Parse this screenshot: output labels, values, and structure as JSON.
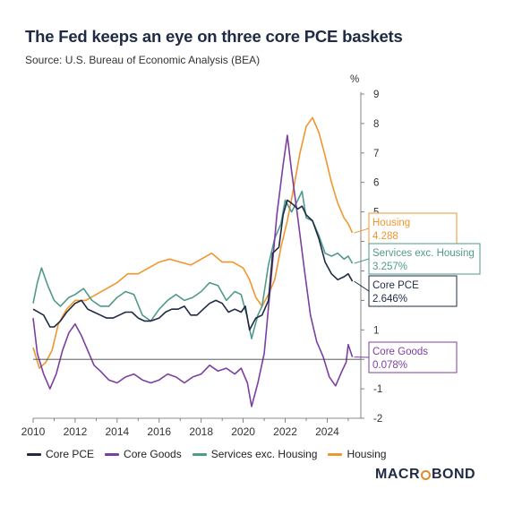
{
  "header": {
    "title": "The Fed keeps an eye on three core PCE baskets",
    "source": "Source: U.S. Bureau of Economic Analysis (BEA)"
  },
  "brand": {
    "name_left": "MACR",
    "name_right": "BOND",
    "accent": "#e28a2b"
  },
  "chart_data": {
    "type": "line",
    "ylabel": "%",
    "ylim": [
      -2,
      9
    ],
    "y_ticks": [
      -2,
      -1,
      0,
      1,
      2,
      3,
      4,
      5,
      6,
      7,
      8,
      9
    ],
    "xlim": [
      2010,
      2025.6
    ],
    "x_ticks": [
      2010,
      2012,
      2014,
      2016,
      2018,
      2020,
      2022,
      2024
    ],
    "grid": false,
    "zero_line": true,
    "legend_position": "bottom",
    "series": [
      {
        "name": "Core PCE",
        "color": "#1f2a44",
        "last_label": "Core PCE",
        "last_value": "2.646%",
        "points": [
          [
            2010.0,
            1.7
          ],
          [
            2010.5,
            1.5
          ],
          [
            2010.8,
            1.1
          ],
          [
            2011.0,
            1.1
          ],
          [
            2011.3,
            1.3
          ],
          [
            2011.6,
            1.6
          ],
          [
            2012.0,
            1.9
          ],
          [
            2012.3,
            2.0
          ],
          [
            2012.6,
            1.7
          ],
          [
            2012.9,
            1.6
          ],
          [
            2013.2,
            1.5
          ],
          [
            2013.5,
            1.4
          ],
          [
            2013.8,
            1.4
          ],
          [
            2014.1,
            1.5
          ],
          [
            2014.4,
            1.6
          ],
          [
            2014.7,
            1.6
          ],
          [
            2015.0,
            1.4
          ],
          [
            2015.3,
            1.3
          ],
          [
            2015.6,
            1.3
          ],
          [
            2016.0,
            1.4
          ],
          [
            2016.3,
            1.6
          ],
          [
            2016.6,
            1.7
          ],
          [
            2016.9,
            1.7
          ],
          [
            2017.2,
            1.8
          ],
          [
            2017.5,
            1.5
          ],
          [
            2017.8,
            1.5
          ],
          [
            2018.1,
            1.7
          ],
          [
            2018.4,
            1.9
          ],
          [
            2018.7,
            2.0
          ],
          [
            2019.0,
            1.9
          ],
          [
            2019.3,
            1.6
          ],
          [
            2019.6,
            1.7
          ],
          [
            2019.9,
            1.6
          ],
          [
            2020.1,
            1.8
          ],
          [
            2020.3,
            1.0
          ],
          [
            2020.6,
            1.4
          ],
          [
            2020.9,
            1.5
          ],
          [
            2021.2,
            2.0
          ],
          [
            2021.4,
            3.6
          ],
          [
            2021.7,
            3.8
          ],
          [
            2021.9,
            4.9
          ],
          [
            2022.1,
            5.4
          ],
          [
            2022.3,
            5.3
          ],
          [
            2022.6,
            5.1
          ],
          [
            2022.8,
            5.2
          ],
          [
            2023.0,
            4.9
          ],
          [
            2023.3,
            4.7
          ],
          [
            2023.6,
            4.1
          ],
          [
            2023.9,
            3.3
          ],
          [
            2024.2,
            2.9
          ],
          [
            2024.5,
            2.7
          ],
          [
            2024.8,
            2.8
          ],
          [
            2025.0,
            2.9
          ],
          [
            2025.2,
            2.646
          ]
        ]
      },
      {
        "name": "Core Goods",
        "color": "#7b3fa0",
        "last_label": "Core Goods",
        "last_value": "0.078%",
        "points": [
          [
            2010.0,
            1.4
          ],
          [
            2010.2,
            0.2
          ],
          [
            2010.5,
            -0.5
          ],
          [
            2010.8,
            -1.0
          ],
          [
            2011.1,
            -0.5
          ],
          [
            2011.4,
            0.3
          ],
          [
            2011.7,
            0.9
          ],
          [
            2012.0,
            1.2
          ],
          [
            2012.3,
            0.8
          ],
          [
            2012.6,
            0.3
          ],
          [
            2012.9,
            -0.2
          ],
          [
            2013.2,
            -0.4
          ],
          [
            2013.6,
            -0.7
          ],
          [
            2014.0,
            -0.8
          ],
          [
            2014.4,
            -0.6
          ],
          [
            2014.8,
            -0.5
          ],
          [
            2015.2,
            -0.7
          ],
          [
            2015.6,
            -0.8
          ],
          [
            2016.0,
            -0.7
          ],
          [
            2016.4,
            -0.5
          ],
          [
            2016.8,
            -0.6
          ],
          [
            2017.2,
            -0.8
          ],
          [
            2017.6,
            -0.6
          ],
          [
            2018.0,
            -0.5
          ],
          [
            2018.4,
            -0.2
          ],
          [
            2018.8,
            -0.4
          ],
          [
            2019.2,
            -0.3
          ],
          [
            2019.6,
            -0.5
          ],
          [
            2019.9,
            -0.3
          ],
          [
            2020.2,
            -0.8
          ],
          [
            2020.4,
            -1.6
          ],
          [
            2020.7,
            -0.8
          ],
          [
            2021.0,
            0.2
          ],
          [
            2021.3,
            2.5
          ],
          [
            2021.6,
            4.9
          ],
          [
            2021.9,
            6.6
          ],
          [
            2022.1,
            7.6
          ],
          [
            2022.3,
            6.4
          ],
          [
            2022.6,
            4.8
          ],
          [
            2022.9,
            3.1
          ],
          [
            2023.2,
            1.5
          ],
          [
            2023.5,
            0.6
          ],
          [
            2023.8,
            0.1
          ],
          [
            2024.1,
            -0.6
          ],
          [
            2024.4,
            -0.9
          ],
          [
            2024.7,
            -0.4
          ],
          [
            2024.9,
            -0.1
          ],
          [
            2025.0,
            0.5
          ],
          [
            2025.2,
            0.078
          ]
        ]
      },
      {
        "name": "Services exc. Housing",
        "color": "#4f9a8b",
        "last_label": "Services exc. Housing",
        "last_value": "3.257%",
        "points": [
          [
            2010.0,
            1.9
          ],
          [
            2010.2,
            2.6
          ],
          [
            2010.4,
            3.1
          ],
          [
            2010.7,
            2.5
          ],
          [
            2011.0,
            2.0
          ],
          [
            2011.3,
            1.8
          ],
          [
            2011.7,
            2.1
          ],
          [
            2012.0,
            2.2
          ],
          [
            2012.4,
            2.4
          ],
          [
            2012.8,
            2.0
          ],
          [
            2013.2,
            1.8
          ],
          [
            2013.6,
            1.8
          ],
          [
            2014.0,
            2.1
          ],
          [
            2014.4,
            2.3
          ],
          [
            2014.8,
            2.2
          ],
          [
            2015.2,
            1.5
          ],
          [
            2015.6,
            1.3
          ],
          [
            2016.0,
            1.7
          ],
          [
            2016.4,
            2.0
          ],
          [
            2016.8,
            2.2
          ],
          [
            2017.2,
            2.0
          ],
          [
            2017.6,
            2.1
          ],
          [
            2018.0,
            2.3
          ],
          [
            2018.4,
            2.6
          ],
          [
            2018.8,
            2.5
          ],
          [
            2019.2,
            2.0
          ],
          [
            2019.6,
            2.3
          ],
          [
            2019.9,
            2.2
          ],
          [
            2020.2,
            1.4
          ],
          [
            2020.4,
            0.7
          ],
          [
            2020.7,
            1.5
          ],
          [
            2020.9,
            1.8
          ],
          [
            2021.2,
            3.2
          ],
          [
            2021.5,
            4.1
          ],
          [
            2021.8,
            4.6
          ],
          [
            2022.0,
            5.4
          ],
          [
            2022.3,
            5.0
          ],
          [
            2022.6,
            5.4
          ],
          [
            2022.8,
            5.7
          ],
          [
            2023.0,
            4.8
          ],
          [
            2023.3,
            4.7
          ],
          [
            2023.6,
            4.2
          ],
          [
            2023.9,
            3.6
          ],
          [
            2024.2,
            3.5
          ],
          [
            2024.5,
            3.6
          ],
          [
            2024.8,
            3.4
          ],
          [
            2025.0,
            3.5
          ],
          [
            2025.2,
            3.257
          ]
        ]
      },
      {
        "name": "Housing",
        "color": "#f0962f",
        "last_label": "Housing",
        "last_value": "4.288",
        "points": [
          [
            2010.0,
            0.4
          ],
          [
            2010.3,
            -0.3
          ],
          [
            2010.6,
            -0.1
          ],
          [
            2010.9,
            0.3
          ],
          [
            2011.2,
            1.2
          ],
          [
            2011.6,
            1.7
          ],
          [
            2012.0,
            2.0
          ],
          [
            2012.5,
            2.0
          ],
          [
            2013.0,
            2.2
          ],
          [
            2013.5,
            2.4
          ],
          [
            2014.0,
            2.6
          ],
          [
            2014.5,
            2.9
          ],
          [
            2015.0,
            2.9
          ],
          [
            2015.5,
            3.1
          ],
          [
            2016.0,
            3.3
          ],
          [
            2016.5,
            3.4
          ],
          [
            2017.0,
            3.3
          ],
          [
            2017.5,
            3.2
          ],
          [
            2018.0,
            3.4
          ],
          [
            2018.5,
            3.6
          ],
          [
            2019.0,
            3.3
          ],
          [
            2019.5,
            3.3
          ],
          [
            2020.0,
            3.1
          ],
          [
            2020.3,
            2.7
          ],
          [
            2020.6,
            2.1
          ],
          [
            2020.9,
            1.8
          ],
          [
            2021.2,
            2.2
          ],
          [
            2021.5,
            2.7
          ],
          [
            2021.8,
            3.8
          ],
          [
            2022.1,
            4.7
          ],
          [
            2022.4,
            5.8
          ],
          [
            2022.7,
            7.0
          ],
          [
            2023.0,
            7.9
          ],
          [
            2023.3,
            8.2
          ],
          [
            2023.6,
            7.7
          ],
          [
            2023.9,
            6.9
          ],
          [
            2024.2,
            6.0
          ],
          [
            2024.5,
            5.3
          ],
          [
            2024.8,
            4.8
          ],
          [
            2025.0,
            4.6
          ],
          [
            2025.2,
            4.288
          ]
        ]
      }
    ]
  }
}
